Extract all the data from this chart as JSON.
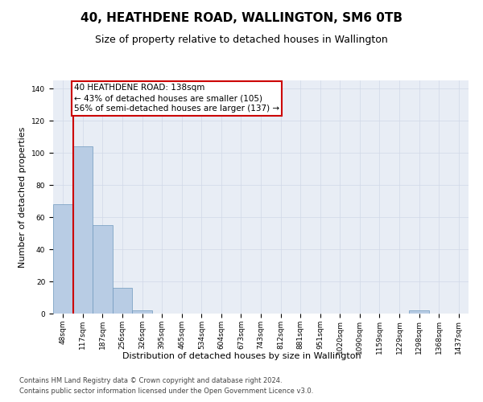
{
  "title": "40, HEATHDENE ROAD, WALLINGTON, SM6 0TB",
  "subtitle": "Size of property relative to detached houses in Wallington",
  "xlabel": "Distribution of detached houses by size in Wallington",
  "ylabel": "Number of detached properties",
  "bin_labels": [
    "48sqm",
    "117sqm",
    "187sqm",
    "256sqm",
    "326sqm",
    "395sqm",
    "465sqm",
    "534sqm",
    "604sqm",
    "673sqm",
    "743sqm",
    "812sqm",
    "881sqm",
    "951sqm",
    "1020sqm",
    "1090sqm",
    "1159sqm",
    "1229sqm",
    "1298sqm",
    "1368sqm",
    "1437sqm"
  ],
  "bar_heights": [
    68,
    104,
    55,
    16,
    2,
    0,
    0,
    0,
    0,
    0,
    0,
    0,
    0,
    0,
    0,
    0,
    0,
    0,
    2,
    0,
    0
  ],
  "bar_color": "#b8cce4",
  "bar_edge_color": "#7099be",
  "property_line_color": "#cc0000",
  "annotation_text": "40 HEATHDENE ROAD: 138sqm\n← 43% of detached houses are smaller (105)\n56% of semi-detached houses are larger (137) →",
  "annotation_box_color": "#cc0000",
  "annotation_bg_color": "#ffffff",
  "ylim": [
    0,
    145
  ],
  "yticks": [
    0,
    20,
    40,
    60,
    80,
    100,
    120,
    140
  ],
  "grid_color": "#d0d8e8",
  "background_color": "#e8edf5",
  "footer_line1": "Contains HM Land Registry data © Crown copyright and database right 2024.",
  "footer_line2": "Contains public sector information licensed under the Open Government Licence v3.0.",
  "title_fontsize": 11,
  "subtitle_fontsize": 9,
  "axis_label_fontsize": 8,
  "tick_fontsize": 6.5,
  "annotation_fontsize": 7.5,
  "footer_fontsize": 6
}
